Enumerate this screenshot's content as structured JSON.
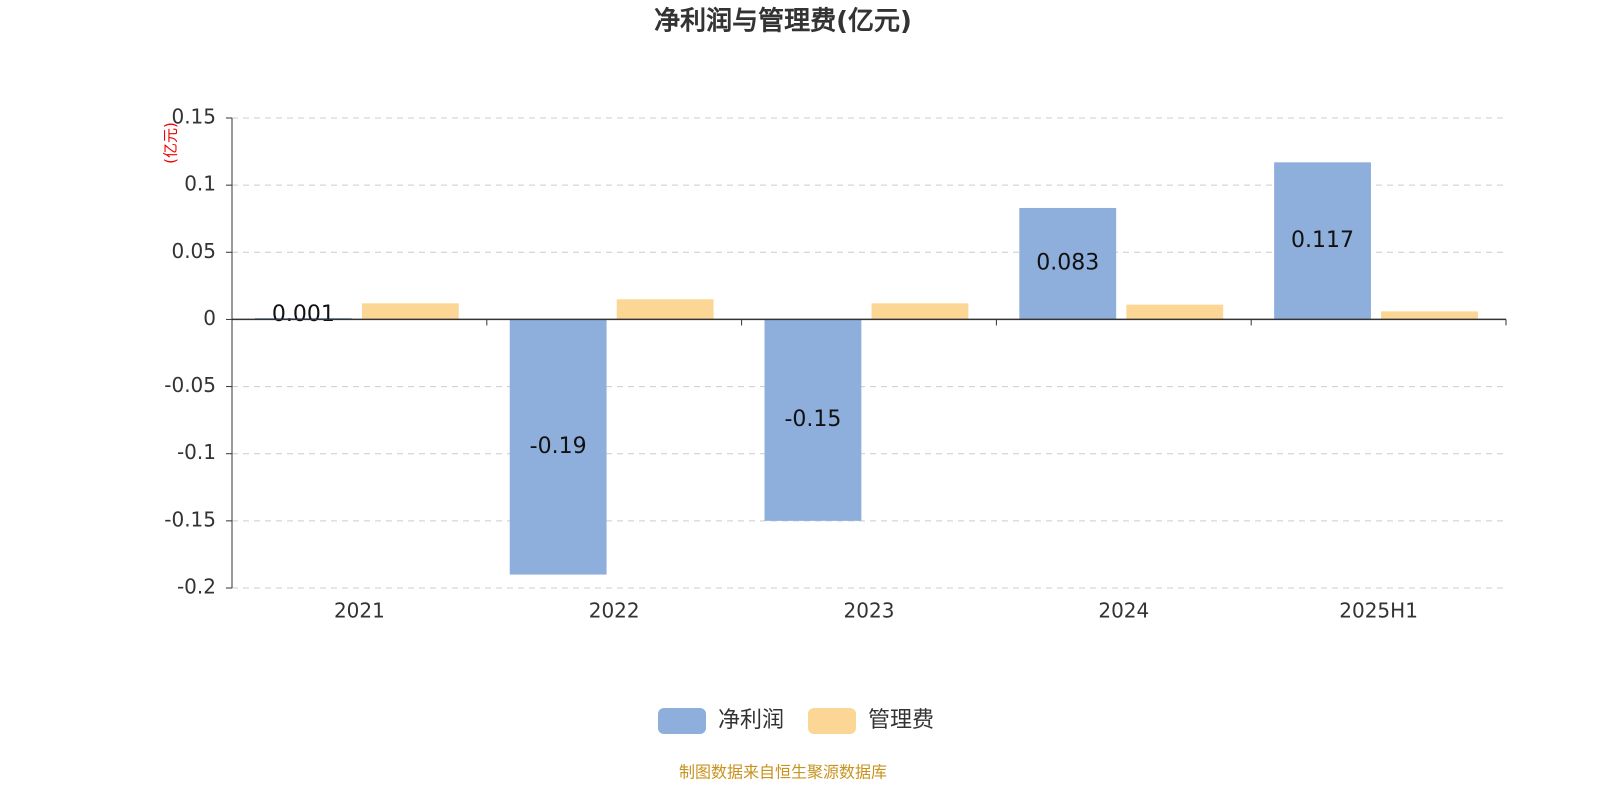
{
  "chart_data": {
    "type": "bar",
    "title": "净利润与管理费(亿元)",
    "y_axis_label": "(亿元)",
    "categories": [
      "2021",
      "2022",
      "2023",
      "2024",
      "2025H1"
    ],
    "series": [
      {
        "name": "净利润",
        "color": "#8eaedb",
        "values": [
          0.001,
          -0.19,
          -0.15,
          0.083,
          0.117
        ],
        "data_labels": true
      },
      {
        "name": "管理费",
        "color": "#fcd695",
        "values": [
          0.012,
          0.015,
          0.012,
          0.011,
          0.006
        ],
        "data_labels": false
      }
    ],
    "ylim": [
      -0.2,
      0.15
    ],
    "yticks": [
      -0.2,
      -0.15,
      -0.1,
      -0.05,
      0,
      0.05,
      0.1,
      0.15
    ],
    "grid": true,
    "legend": "bottom",
    "source": "制图数据来自恒生聚源数据库"
  }
}
